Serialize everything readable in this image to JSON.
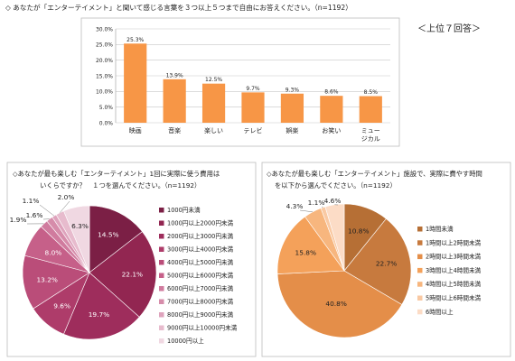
{
  "top_question": "◇ あなたが「エンターテイメント」と聞いて感じる言葉を３つ以上５つまで自由にお答えください。（n=1192）",
  "top_note": "＜上位７回答＞",
  "left_question_line1": "◇あなたが最も楽しむ「エンターテイメント」1回に実際に使う費用は",
  "left_question_line2": "いくらですか？　１つを選んでください。（n=1192）",
  "right_question_line1": "◇あなたが最も楽しむ「エンターテイメント」施設で、実際に費やす時間",
  "right_question_line2": "を以下から選んでください。（n=1192）",
  "chart_data": [
    {
      "type": "bar",
      "categories": [
        "映画",
        "音楽",
        "楽しい",
        "テレビ",
        "娯楽",
        "お笑い",
        "ミュージカル"
      ],
      "category_lines": [
        [
          "映画"
        ],
        [
          "音楽"
        ],
        [
          "楽しい"
        ],
        [
          "テレビ"
        ],
        [
          "娯楽"
        ],
        [
          "お笑い"
        ],
        [
          "ミュー",
          "ジカル"
        ]
      ],
      "values": [
        25.3,
        13.9,
        12.5,
        9.7,
        9.3,
        8.6,
        8.5
      ],
      "value_labels": [
        "25.3%",
        "13.9%",
        "12.5%",
        "9.7%",
        "9.3%",
        "8.6%",
        "8.5%"
      ],
      "ylim": [
        0,
        30
      ],
      "yticks": [
        0,
        5,
        10,
        15,
        20,
        25,
        30
      ],
      "ytick_labels": [
        "0.0%",
        "5.0%",
        "10.0%",
        "15.0%",
        "20.0%",
        "25.0%",
        "30.0%"
      ],
      "grid": true,
      "color": "#F79646"
    },
    {
      "type": "pie",
      "labels": [
        "1000円未満",
        "1000円以上2000円未満",
        "2000円以上3000円未満",
        "3000円以上4000円未満",
        "4000円以上5000円未満",
        "5000円以上6000円未満",
        "6000円以上7000円未満",
        "7000円以上8000円未満",
        "8000円以上9000円未満",
        "9000円以上10000円未満",
        "10000円以上"
      ],
      "values": [
        14.5,
        22.1,
        19.7,
        9.6,
        13.2,
        8.0,
        1.9,
        1.6,
        1.1,
        2.0,
        6.3
      ],
      "value_labels": [
        "14.5%",
        "22.1%",
        "19.7%",
        "9.6%",
        "13.2%",
        "8.0%",
        "1.9%",
        "1.6%",
        "1.1%",
        "2.0%",
        "6.3%"
      ],
      "colors": [
        "#7B1F45",
        "#922651",
        "#9E2D5C",
        "#AE3C6A",
        "#BA4D79",
        "#C66089",
        "#D07B9E",
        "#D68CAA",
        "#DEA3BC",
        "#E7BBCD",
        "#F0D8E2"
      ],
      "legend": "right"
    },
    {
      "type": "pie",
      "labels": [
        "1時間未満",
        "1時間以上2時間未満",
        "2時間以上3時間未満",
        "3時間以上4時間未満",
        "4時間以上5時間未満",
        "5時間以上6時間未満",
        "6時間以上"
      ],
      "values": [
        10.8,
        22.7,
        40.8,
        15.8,
        4.3,
        1.1,
        4.6
      ],
      "value_labels": [
        "10.8%",
        "22.7%",
        "40.8%",
        "15.8%",
        "4.3%",
        "1.1%",
        "4.6%"
      ],
      "colors": [
        "#B66F35",
        "#C77A3E",
        "#E48E49",
        "#F4A15A",
        "#F7B67E",
        "#F9C9A3",
        "#FCDCC6"
      ],
      "legend": "right"
    }
  ]
}
